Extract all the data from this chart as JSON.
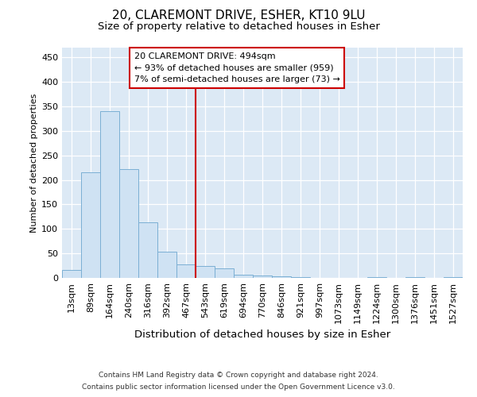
{
  "title": "20, CLAREMONT DRIVE, ESHER, KT10 9LU",
  "subtitle": "Size of property relative to detached houses in Esher",
  "xlabel": "Distribution of detached houses by size in Esher",
  "ylabel": "Number of detached properties",
  "categories": [
    "13sqm",
    "89sqm",
    "164sqm",
    "240sqm",
    "316sqm",
    "392sqm",
    "467sqm",
    "543sqm",
    "619sqm",
    "694sqm",
    "770sqm",
    "846sqm",
    "921sqm",
    "997sqm",
    "1073sqm",
    "1149sqm",
    "1224sqm",
    "1300sqm",
    "1376sqm",
    "1451sqm",
    "1527sqm"
  ],
  "values": [
    17,
    215,
    340,
    222,
    114,
    53,
    27,
    25,
    20,
    6,
    5,
    3,
    2,
    0,
    0,
    0,
    2,
    0,
    2,
    0,
    2
  ],
  "bar_color": "#cfe2f3",
  "bar_edge_color": "#7bafd4",
  "background_color": "#dce9f5",
  "vline_x_index": 6,
  "vline_color": "#cc0000",
  "annotation_line1": "20 CLAREMONT DRIVE: 494sqm",
  "annotation_line2": "← 93% of detached houses are smaller (959)",
  "annotation_line3": "7% of semi-detached houses are larger (73) →",
  "annotation_box_color": "#cc0000",
  "footer_line1": "Contains HM Land Registry data © Crown copyright and database right 2024.",
  "footer_line2": "Contains public sector information licensed under the Open Government Licence v3.0.",
  "ylim": [
    0,
    470
  ],
  "yticks": [
    0,
    50,
    100,
    150,
    200,
    250,
    300,
    350,
    400,
    450
  ],
  "title_fontsize": 11,
  "subtitle_fontsize": 9.5,
  "xlabel_fontsize": 9.5,
  "ylabel_fontsize": 8,
  "tick_fontsize": 8,
  "annotation_fontsize": 8,
  "footer_fontsize": 6.5
}
